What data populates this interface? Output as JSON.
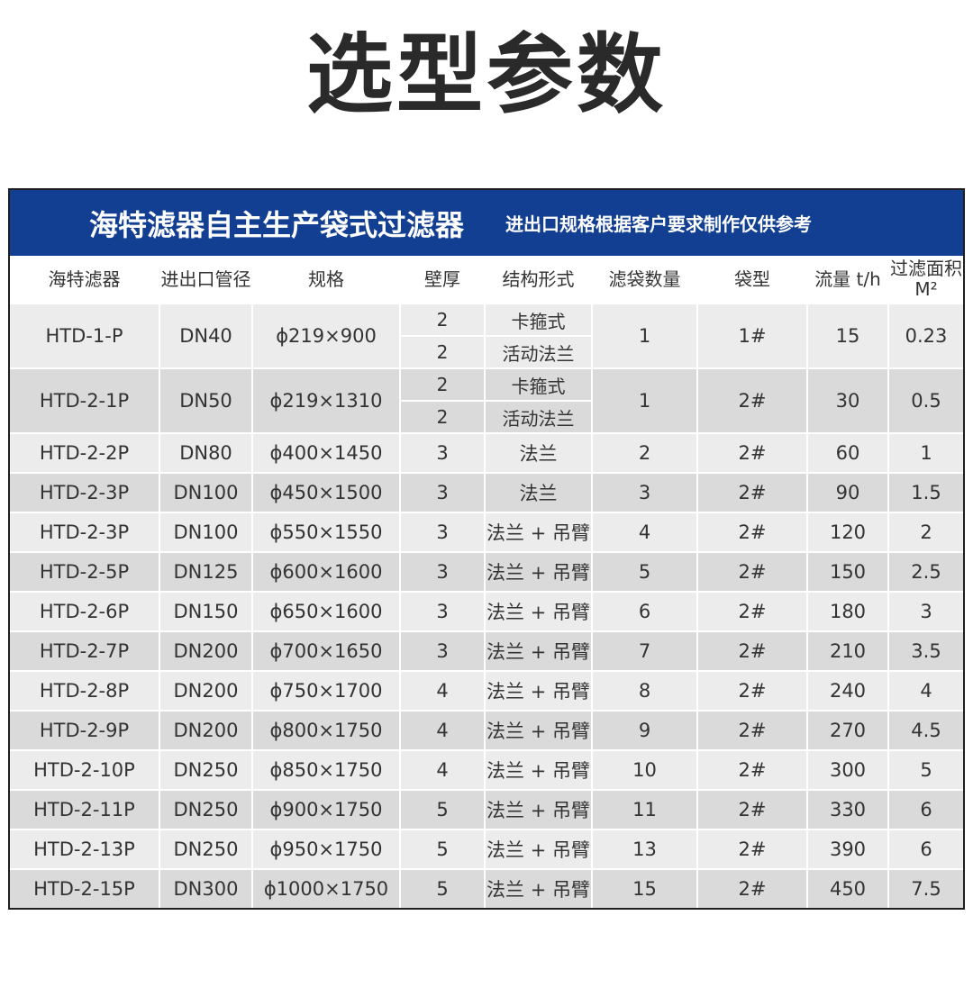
{
  "page_title": "选型参数",
  "banner": {
    "title": "海特滤器自主生产袋式过滤器",
    "note": "进出口规格根据客户要求制作仅供参考"
  },
  "headers": [
    "海特滤器",
    "进出口管径",
    "规格",
    "壁厚",
    "结构形式",
    "滤袋数量",
    "袋型",
    "流量 t/h",
    "过滤面积 M²"
  ],
  "split_rows": [
    {
      "model": "HTD-1-P",
      "port": "DN40",
      "spec": "ϕ219×900",
      "options": [
        {
          "thickness": "2",
          "structure": "卡箍式"
        },
        {
          "thickness": "2",
          "structure": "活动法兰"
        }
      ],
      "bags": "1",
      "bag_type": "1#",
      "flow": "15",
      "area": "0.23"
    },
    {
      "model": "HTD-2-1P",
      "port": "DN50",
      "spec": "ϕ219×1310",
      "options": [
        {
          "thickness": "2",
          "structure": "卡箍式"
        },
        {
          "thickness": "2",
          "structure": "活动法兰"
        }
      ],
      "bags": "1",
      "bag_type": "2#",
      "flow": "30",
      "area": "0.5"
    }
  ],
  "rows": [
    {
      "model": "HTD-2-2P",
      "port": "DN80",
      "spec": "ϕ400×1450",
      "thickness": "3",
      "structure": "法兰",
      "bags": "2",
      "bag_type": "2#",
      "flow": "60",
      "area": "1"
    },
    {
      "model": "HTD-2-3P",
      "port": "DN100",
      "spec": "ϕ450×1500",
      "thickness": "3",
      "structure": "法兰",
      "bags": "3",
      "bag_type": "2#",
      "flow": "90",
      "area": "1.5"
    },
    {
      "model": "HTD-2-3P",
      "port": "DN100",
      "spec": "ϕ550×1550",
      "thickness": "3",
      "structure": "法兰 + 吊臂",
      "bags": "4",
      "bag_type": "2#",
      "flow": "120",
      "area": "2"
    },
    {
      "model": "HTD-2-5P",
      "port": "DN125",
      "spec": "ϕ600×1600",
      "thickness": "3",
      "structure": "法兰 + 吊臂",
      "bags": "5",
      "bag_type": "2#",
      "flow": "150",
      "area": "2.5"
    },
    {
      "model": "HTD-2-6P",
      "port": "DN150",
      "spec": "ϕ650×1600",
      "thickness": "3",
      "structure": "法兰 + 吊臂",
      "bags": "6",
      "bag_type": "2#",
      "flow": "180",
      "area": "3"
    },
    {
      "model": "HTD-2-7P",
      "port": "DN200",
      "spec": "ϕ700×1650",
      "thickness": "3",
      "structure": "法兰 + 吊臂",
      "bags": "7",
      "bag_type": "2#",
      "flow": "210",
      "area": "3.5"
    },
    {
      "model": "HTD-2-8P",
      "port": "DN200",
      "spec": "ϕ750×1700",
      "thickness": "4",
      "structure": "法兰 + 吊臂",
      "bags": "8",
      "bag_type": "2#",
      "flow": "240",
      "area": "4"
    },
    {
      "model": "HTD-2-9P",
      "port": "DN200",
      "spec": "ϕ800×1750",
      "thickness": "4",
      "structure": "法兰 + 吊臂",
      "bags": "9",
      "bag_type": "2#",
      "flow": "270",
      "area": "4.5"
    },
    {
      "model": "HTD-2-10P",
      "port": "DN250",
      "spec": "ϕ850×1750",
      "thickness": "4",
      "structure": "法兰 + 吊臂",
      "bags": "10",
      "bag_type": "2#",
      "flow": "300",
      "area": "5"
    },
    {
      "model": "HTD-2-11P",
      "port": "DN250",
      "spec": "ϕ900×1750",
      "thickness": "5",
      "structure": "法兰 + 吊臂",
      "bags": "11",
      "bag_type": "2#",
      "flow": "330",
      "area": "6"
    },
    {
      "model": "HTD-2-13P",
      "port": "DN250",
      "spec": "ϕ950×1750",
      "thickness": "5",
      "structure": "法兰 + 吊臂",
      "bags": "13",
      "bag_type": "2#",
      "flow": "390",
      "area": "6"
    },
    {
      "model": "HTD-2-15P",
      "port": "DN300",
      "spec": "ϕ1000×1750",
      "thickness": "5",
      "structure": "法兰 + 吊臂",
      "bags": "15",
      "bag_type": "2#",
      "flow": "450",
      "area": "7.5"
    }
  ],
  "colors": {
    "banner_bg": "#123f91",
    "row_light": "#ececec",
    "row_dark": "#dadada",
    "text": "#333333"
  }
}
